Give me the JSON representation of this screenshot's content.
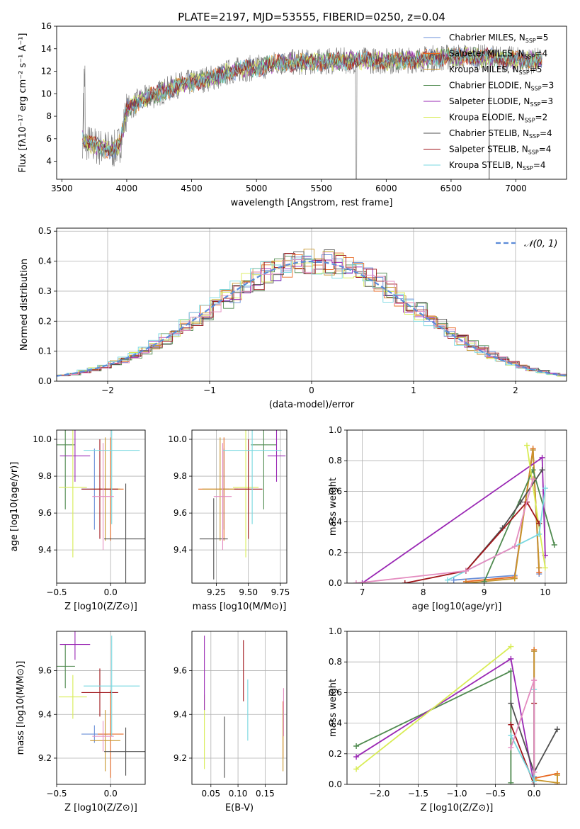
{
  "figure": {
    "title": "PLATE=2197, MJD=53555, FIBERID=0250, z=0.04"
  },
  "colors": {
    "Chabrier MILES": "#6a8fd8",
    "Salpeter MILES": "#e86a24",
    "Kroupa MILES": "#c8962c",
    "Chabrier ELODIE": "#4f8a4f",
    "Salpeter ELODIE": "#9a28b4",
    "Kroupa ELODIE": "#d8ec54",
    "Chabrier STELIB": "#505050",
    "Salpeter STELIB": "#a0161b",
    "Kroupa STELIB": "#78d8e0",
    "pink": "#e48cc0",
    "gaussian": "#5b8bd8",
    "observed": "#808080"
  },
  "chart_data": [
    {
      "id": "spectrum",
      "type": "line",
      "title": "PLATE=2197, MJD=53555, FIBERID=0250, z=0.04",
      "xlabel": "wavelength [Angstrom, rest frame]",
      "ylabel": "Flux [fλ10⁻¹⁷ erg cm⁻² s⁻¹ A⁻¹]",
      "xlim": [
        3460,
        7390
      ],
      "ylim": [
        2.4,
        16
      ],
      "xticks": [
        3500,
        4000,
        4500,
        5000,
        5500,
        6000,
        6500,
        7000
      ],
      "yticks": [
        4,
        6,
        8,
        10,
        12,
        14,
        16
      ],
      "grid": false,
      "legend_position": "top-right",
      "legend": [
        "Chabrier MILES, N_SSP=5",
        "Salpeter MILES, N_SSP=4",
        "Kroupa MILES, N_SSP=5",
        "Chabrier ELODIE, N_SSP=3",
        "Salpeter ELODIE, N_SSP=3",
        "Kroupa ELODIE, N_SSP=2",
        "Chabrier STELIB, N_SSP=4",
        "Salpeter STELIB, N_SSP=4",
        "Kroupa STELIB, N_SSP=4"
      ],
      "continuum": {
        "x": [
          3660,
          3700,
          3800,
          3900,
          3950,
          4000,
          4100,
          4200,
          4300,
          4400,
          4500,
          4600,
          4700,
          4800,
          4900,
          5000,
          5200,
          5400,
          5600,
          5800,
          6000,
          6200,
          6400,
          6600,
          6800,
          7000,
          7200
        ],
        "y": [
          6.0,
          5.6,
          5.2,
          5.0,
          5.6,
          8.6,
          9.4,
          9.8,
          10.3,
          10.8,
          11.0,
          11.3,
          11.5,
          12.0,
          12.2,
          12.3,
          12.8,
          12.8,
          12.9,
          13.0,
          12.9,
          13.0,
          13.2,
          13.3,
          13.2,
          13.0,
          12.9
        ]
      }
    },
    {
      "id": "residuals",
      "type": "bar",
      "xlabel": "(data-model)/error",
      "ylabel": "Normed distribution",
      "xlim": [
        -2.5,
        2.5
      ],
      "ylim": [
        0,
        0.51
      ],
      "xticks": [
        -2,
        -1,
        0,
        1,
        2
      ],
      "yticks": [
        0.0,
        0.1,
        0.2,
        0.3,
        0.4,
        0.5
      ],
      "grid": true,
      "legend_position": "top-right",
      "legend": [
        "𝒩(0, 1)"
      ],
      "gaussian": {
        "mean": 0,
        "sigma": 1
      },
      "bin_width": 0.1
    },
    {
      "id": "age_vs_Z",
      "type": "scatter",
      "xlabel": "Z [log10(Z/Z⊙)]",
      "ylabel": "age  [log10(age/yr)]",
      "xlim": [
        -0.5,
        0.32
      ],
      "ylim": [
        9.22,
        10.05
      ],
      "xticks": [
        -0.5,
        0.0
      ],
      "yticks": [
        9.4,
        9.6,
        9.8,
        10.0
      ],
      "grid": true,
      "points": [
        {
          "model": "Chabrier MILES",
          "x": -0.15,
          "y": 9.73,
          "ex": 0.12,
          "ey": 0.22
        },
        {
          "model": "Salpeter MILES",
          "x": 0.0,
          "y": 9.73,
          "ex": 0.12,
          "ey": 0.28
        },
        {
          "model": "Kroupa MILES",
          "x": -0.05,
          "y": 9.73,
          "ex": 0.14,
          "ey": 0.28
        },
        {
          "model": "Chabrier ELODIE",
          "x": -0.42,
          "y": 9.97,
          "ex": 0.09,
          "ey": 0.35
        },
        {
          "model": "Salpeter ELODIE",
          "x": -0.33,
          "y": 9.91,
          "ex": 0.14,
          "ey": 0.14
        },
        {
          "model": "Kroupa ELODIE",
          "x": -0.35,
          "y": 9.74,
          "ex": 0.13,
          "ey": 0.38
        },
        {
          "model": "Chabrier STELIB",
          "x": 0.14,
          "y": 9.46,
          "ex": 0.2,
          "ey": 0.3
        },
        {
          "model": "Salpeter STELIB",
          "x": -0.1,
          "y": 9.73,
          "ex": 0.17,
          "ey": 0.27
        },
        {
          "model": "Kroupa STELIB",
          "x": 0.01,
          "y": 9.94,
          "ex": 0.26,
          "ey": 0.4
        },
        {
          "model": "pink",
          "x": -0.07,
          "y": 9.69,
          "ex": 0.1,
          "ey": 0.29
        }
      ]
    },
    {
      "id": "age_vs_mass",
      "type": "scatter",
      "xlabel": "mass [log10(M/M⊙)]",
      "ylabel": "",
      "xlim": [
        9.06,
        9.8
      ],
      "ylim": [
        9.22,
        10.05
      ],
      "xticks": [
        9.25,
        9.5,
        9.75
      ],
      "yticks": [
        9.4,
        9.6,
        9.8,
        10.0
      ],
      "grid": true,
      "points": [
        {
          "model": "Chabrier MILES",
          "x": 9.31,
          "y": 9.73,
          "ex": 0.04,
          "ey": 0.22
        },
        {
          "model": "Salpeter MILES",
          "x": 9.31,
          "y": 9.73,
          "ex": 0.2,
          "ey": 0.28
        },
        {
          "model": "Kroupa MILES",
          "x": 9.28,
          "y": 9.73,
          "ex": 0.14,
          "ey": 0.28
        },
        {
          "model": "Chabrier ELODIE",
          "x": 9.62,
          "y": 9.97,
          "ex": 0.1,
          "ey": 0.35
        },
        {
          "model": "Salpeter ELODIE",
          "x": 9.72,
          "y": 9.91,
          "ex": 0.07,
          "ey": 0.14
        },
        {
          "model": "Kroupa ELODIE",
          "x": 9.48,
          "y": 9.74,
          "ex": 0.1,
          "ey": 0.38
        },
        {
          "model": "Chabrier STELIB",
          "x": 9.23,
          "y": 9.46,
          "ex": 0.11,
          "ey": 0.22
        },
        {
          "model": "Salpeter STELIB",
          "x": 9.5,
          "y": 9.73,
          "ex": 0.11,
          "ey": 0.27
        },
        {
          "model": "Kroupa STELIB",
          "x": 9.53,
          "y": 9.94,
          "ex": 0.23,
          "ey": 0.4
        },
        {
          "model": "pink",
          "x": 9.3,
          "y": 9.69,
          "ex": 0.07,
          "ey": 0.29
        }
      ]
    },
    {
      "id": "weight_vs_age",
      "type": "line",
      "xlabel": "age  [log10(age/yr)]",
      "ylabel": "mass weight",
      "xlim": [
        6.75,
        10.35
      ],
      "ylim": [
        0,
        1.0
      ],
      "xticks": [
        7,
        8,
        9,
        10
      ],
      "yticks": [
        0.0,
        0.2,
        0.4,
        0.6,
        0.8,
        1.0
      ],
      "grid": true,
      "series": [
        {
          "model": "Chabrier MILES",
          "x": [
            8.5,
            9.5,
            9.8,
            9.9
          ],
          "y": [
            0.02,
            0.05,
            0.87,
            0.06
          ]
        },
        {
          "model": "Salpeter MILES",
          "x": [
            8.7,
            9.5,
            9.8,
            9.9
          ],
          "y": [
            0.01,
            0.04,
            0.88,
            0.07
          ]
        },
        {
          "model": "Kroupa MILES",
          "x": [
            8.7,
            9.5,
            9.8,
            9.9
          ],
          "y": [
            0.0,
            0.03,
            0.87,
            0.1
          ]
        },
        {
          "model": "Chabrier ELODIE",
          "x": [
            9.0,
            9.8,
            10.15
          ],
          "y": [
            0.01,
            0.74,
            0.25
          ]
        },
        {
          "model": "Salpeter ELODIE",
          "x": [
            7.0,
            9.95,
            10.0
          ],
          "y": [
            0.0,
            0.82,
            0.18
          ]
        },
        {
          "model": "Kroupa ELODIE",
          "x": [
            9.7,
            10.0
          ],
          "y": [
            0.9,
            0.1
          ]
        },
        {
          "model": "Chabrier STELIB",
          "x": [
            8.7,
            9.3,
            9.6,
            9.95
          ],
          "y": [
            0.08,
            0.36,
            0.53,
            0.74
          ]
        },
        {
          "model": "Salpeter STELIB",
          "x": [
            7.7,
            8.7,
            9.7,
            9.9
          ],
          "y": [
            0.0,
            0.08,
            0.53,
            0.39
          ]
        },
        {
          "model": "Kroupa STELIB",
          "x": [
            8.4,
            9.9,
            10.0
          ],
          "y": [
            0.02,
            0.32,
            0.62
          ]
        },
        {
          "model": "pink",
          "x": [
            6.9,
            8.7,
            9.5,
            9.8
          ],
          "y": [
            0.0,
            0.08,
            0.24,
            0.68
          ]
        }
      ]
    },
    {
      "id": "mass_vs_Z",
      "type": "scatter",
      "xlabel": "Z [log10(Z/Z⊙)]",
      "ylabel": "mass [log10(M/M⊙)]",
      "xlim": [
        -0.5,
        0.32
      ],
      "ylim": [
        9.08,
        9.78
      ],
      "xticks": [
        -0.5,
        0.0
      ],
      "yticks": [
        9.2,
        9.4,
        9.6
      ],
      "grid": true,
      "points": [
        {
          "model": "Chabrier MILES",
          "x": -0.15,
          "y": 9.31,
          "ex": 0.12,
          "ey": 0.04
        },
        {
          "model": "Salpeter MILES",
          "x": 0.0,
          "y": 9.31,
          "ex": 0.12,
          "ey": 0.2
        },
        {
          "model": "Kroupa MILES",
          "x": -0.05,
          "y": 9.28,
          "ex": 0.14,
          "ey": 0.14
        },
        {
          "model": "Chabrier ELODIE",
          "x": -0.42,
          "y": 9.62,
          "ex": 0.09,
          "ey": 0.1
        },
        {
          "model": "Salpeter ELODIE",
          "x": -0.33,
          "y": 9.72,
          "ex": 0.14,
          "ey": 0.07
        },
        {
          "model": "Kroupa ELODIE",
          "x": -0.35,
          "y": 9.48,
          "ex": 0.13,
          "ey": 0.1
        },
        {
          "model": "Chabrier STELIB",
          "x": 0.14,
          "y": 9.23,
          "ex": 0.2,
          "ey": 0.11
        },
        {
          "model": "Salpeter STELIB",
          "x": -0.1,
          "y": 9.5,
          "ex": 0.17,
          "ey": 0.11
        },
        {
          "model": "Kroupa STELIB",
          "x": 0.01,
          "y": 9.53,
          "ex": 0.26,
          "ey": 0.23
        },
        {
          "model": "pink",
          "x": -0.07,
          "y": 9.3,
          "ex": 0.1,
          "ey": 0.07
        }
      ]
    },
    {
      "id": "mass_vs_ebv",
      "type": "scatter",
      "xlabel": "E(B-V)",
      "ylabel": "",
      "xlim": [
        0.015,
        0.19
      ],
      "ylim": [
        9.08,
        9.78
      ],
      "xticks": [
        0.05,
        0.1,
        0.15
      ],
      "yticks": [
        9.2,
        9.4,
        9.6
      ],
      "grid": true,
      "points": [
        {
          "model": "Kroupa ELODIE",
          "x": 0.038,
          "y": 9.32,
          "ey": 0.17
        },
        {
          "model": "Salpeter ELODIE",
          "x": 0.038,
          "y": 9.59,
          "ey": 0.17
        },
        {
          "model": "Chabrier STELIB",
          "x": 0.075,
          "y": 9.25,
          "ey": 0.14
        },
        {
          "model": "Salpeter STELIB",
          "x": 0.11,
          "y": 9.6,
          "ey": 0.14
        },
        {
          "model": "Kroupa STELIB",
          "x": 0.118,
          "y": 9.42,
          "ey": 0.14
        },
        {
          "model": "Salpeter MILES",
          "x": 0.183,
          "y": 9.33,
          "ey": 0.13
        },
        {
          "model": "Kroupa MILES",
          "x": 0.183,
          "y": 9.28,
          "ey": 0.14
        },
        {
          "model": "pink",
          "x": 0.184,
          "y": 9.41,
          "ey": 0.11
        }
      ]
    },
    {
      "id": "weight_vs_Z",
      "type": "line",
      "xlabel": "Z [log10(Z/Z⊙)]",
      "ylabel": "mass weight",
      "xlim": [
        -2.42,
        0.42
      ],
      "ylim": [
        0,
        1.0
      ],
      "xticks": [
        -2.0,
        -1.5,
        -1.0,
        -0.5,
        0.0
      ],
      "yticks": [
        0.0,
        0.2,
        0.4,
        0.6,
        0.8,
        1.0
      ],
      "grid": true,
      "series": [
        {
          "model": "Chabrier MILES",
          "x": [
            0.0,
            0.0,
            0.0
          ],
          "y": [
            0.05,
            0.1,
            0.87
          ]
        },
        {
          "model": "Salpeter MILES",
          "x": [
            0.0,
            0.0,
            0.3,
            0.3
          ],
          "y": [
            0.88,
            0.04,
            0.07,
            0.0
          ]
        },
        {
          "model": "Kroupa MILES",
          "x": [
            0.0,
            0.0,
            0.3,
            0.3
          ],
          "y": [
            0.87,
            0.03,
            0.01,
            0.06
          ]
        },
        {
          "model": "Chabrier ELODIE",
          "x": [
            -2.3,
            -0.3,
            -0.3
          ],
          "y": [
            0.25,
            0.74,
            0.01
          ]
        },
        {
          "model": "Salpeter ELODIE",
          "x": [
            -2.3,
            -0.3,
            0.0
          ],
          "y": [
            0.18,
            0.82,
            0.0
          ]
        },
        {
          "model": "Kroupa ELODIE",
          "x": [
            -2.3,
            -0.3
          ],
          "y": [
            0.1,
            0.9
          ]
        },
        {
          "model": "Chabrier STELIB",
          "x": [
            -0.3,
            0.0,
            0.3
          ],
          "y": [
            0.53,
            0.08,
            0.36
          ]
        },
        {
          "model": "Salpeter STELIB",
          "x": [
            -0.3,
            0.0,
            0.0
          ],
          "y": [
            0.39,
            0.0,
            0.53
          ]
        },
        {
          "model": "Kroupa STELIB",
          "x": [
            -0.3,
            0.0,
            0.0
          ],
          "y": [
            0.32,
            0.02,
            0.62
          ]
        },
        {
          "model": "pink",
          "x": [
            -0.3,
            0.0,
            0.0
          ],
          "y": [
            0.24,
            0.68,
            0.08
          ]
        }
      ]
    }
  ]
}
